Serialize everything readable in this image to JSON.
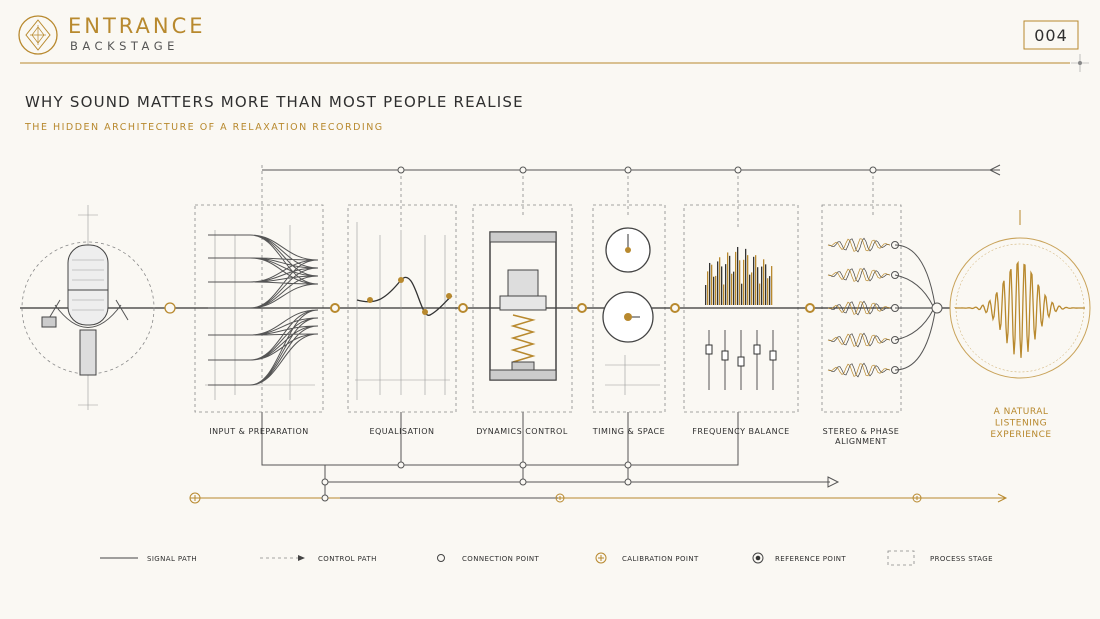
{
  "header": {
    "brand": "ENTRANCE",
    "brand_sub": "BACKSTAGE",
    "page_number": "004"
  },
  "title": "WHY SOUND MATTERS MORE THAN MOST PEOPLE REALISE",
  "subtitle": "THE HIDDEN ARCHITECTURE OF A RELAXATION RECORDING",
  "stages": [
    {
      "label_lines": [
        "INPUT & PREPARATION"
      ]
    },
    {
      "label_lines": [
        "EQUALISATION"
      ]
    },
    {
      "label_lines": [
        "DYNAMICS CONTROL"
      ]
    },
    {
      "label_lines": [
        "TIMING & SPACE"
      ]
    },
    {
      "label_lines": [
        "FREQUENCY BALANCE"
      ]
    },
    {
      "label_lines": [
        "STEREO & PHASE",
        "ALIGNMENT"
      ]
    }
  ],
  "output": {
    "label_lines": [
      "A NATURAL",
      "LISTENING",
      "EXPERIENCE"
    ]
  },
  "legend": [
    "SIGNAL PATH",
    "CONTROL PATH",
    "CONNECTION POINT",
    "CALIBRATION POINT",
    "REFERENCE POINT",
    "PROCESS STAGE"
  ]
}
